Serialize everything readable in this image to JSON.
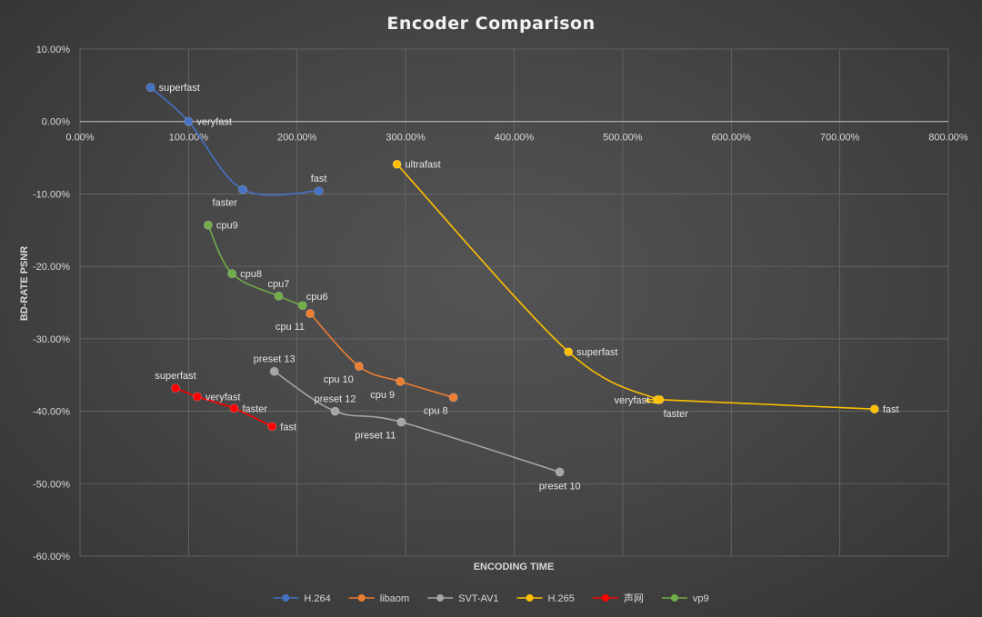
{
  "chart_data": {
    "type": "scatter",
    "title": "Encoder Comparison",
    "xlabel": "ENCODING TIME",
    "ylabel": "BD-RATE PSNR",
    "xlim": [
      0,
      8
    ],
    "ylim": [
      -0.6,
      0.1
    ],
    "x_ticks": [
      "0.00%",
      "100.00%",
      "200.00%",
      "300.00%",
      "400.00%",
      "500.00%",
      "600.00%",
      "700.00%",
      "800.00%"
    ],
    "y_ticks": [
      "10.00%",
      "0.00%",
      "-10.00%",
      "-20.00%",
      "-30.00%",
      "-40.00%",
      "-50.00%",
      "-60.00%"
    ],
    "x_tick_values": [
      0,
      1,
      2,
      3,
      4,
      5,
      6,
      7,
      8
    ],
    "y_tick_values": [
      0.1,
      0,
      -0.1,
      -0.2,
      -0.3,
      -0.4,
      -0.5,
      -0.6
    ],
    "grid": true,
    "smooth_lines": true,
    "legend_position": "bottom",
    "series": [
      {
        "name": "H.264",
        "color": "#4472c4",
        "points": [
          {
            "x": 0.65,
            "y": 0.047,
            "label": "superfast",
            "pos": "right"
          },
          {
            "x": 1.0,
            "y": 0.0,
            "label": "veryfast",
            "pos": "right"
          },
          {
            "x": 1.5,
            "y": -0.094,
            "label": "faster",
            "pos": "below-left"
          },
          {
            "x": 2.2,
            "y": -0.096,
            "label": "fast",
            "pos": "above"
          }
        ]
      },
      {
        "name": "libaom",
        "color": "#ed7d31",
        "points": [
          {
            "x": 2.12,
            "y": -0.265,
            "label": "cpu 11",
            "pos": "below-left"
          },
          {
            "x": 2.57,
            "y": -0.338,
            "label": "cpu 10",
            "pos": "below-left"
          },
          {
            "x": 2.95,
            "y": -0.359,
            "label": "cpu 9",
            "pos": "below-left"
          },
          {
            "x": 3.44,
            "y": -0.381,
            "label": "cpu 8",
            "pos": "below-left"
          }
        ]
      },
      {
        "name": "SVT-AV1",
        "color": "#a5a5a5",
        "points": [
          {
            "x": 1.79,
            "y": -0.345,
            "label": "preset 13",
            "pos": "above"
          },
          {
            "x": 2.35,
            "y": -0.4,
            "label": "preset 12",
            "pos": "above"
          },
          {
            "x": 2.96,
            "y": -0.415,
            "label": "preset 11",
            "pos": "below-left"
          },
          {
            "x": 4.42,
            "y": -0.484,
            "label": "preset 10",
            "pos": "below"
          }
        ]
      },
      {
        "name": "H.265",
        "color": "#ffc000",
        "points": [
          {
            "x": 2.92,
            "y": -0.059,
            "label": "ultrafast",
            "pos": "right"
          },
          {
            "x": 4.5,
            "y": -0.318,
            "label": "superfast",
            "pos": "right"
          },
          {
            "x": 5.32,
            "y": -0.384,
            "label": "veryfast",
            "pos": "left"
          },
          {
            "x": 5.34,
            "y": -0.384,
            "label": "faster",
            "pos": "below-right"
          },
          {
            "x": 7.32,
            "y": -0.397,
            "label": "fast",
            "pos": "right"
          }
        ]
      },
      {
        "name": "声网",
        "color": "#ff0000",
        "points": [
          {
            "x": 0.88,
            "y": -0.368,
            "label": "superfast",
            "pos": "above"
          },
          {
            "x": 1.08,
            "y": -0.38,
            "label": "veryfast",
            "pos": "right"
          },
          {
            "x": 1.42,
            "y": -0.396,
            "label": "faster",
            "pos": "right"
          },
          {
            "x": 1.77,
            "y": -0.421,
            "label": "fast",
            "pos": "right"
          }
        ]
      },
      {
        "name": "vp9",
        "color": "#70ad47",
        "points": [
          {
            "x": 1.18,
            "y": -0.143,
            "label": "cpu9",
            "pos": "right"
          },
          {
            "x": 1.4,
            "y": -0.21,
            "label": "cpu8",
            "pos": "right"
          },
          {
            "x": 1.83,
            "y": -0.241,
            "label": "cpu7",
            "pos": "above"
          },
          {
            "x": 2.05,
            "y": -0.254,
            "label": "cpu6",
            "pos": "above-right"
          }
        ]
      }
    ]
  }
}
